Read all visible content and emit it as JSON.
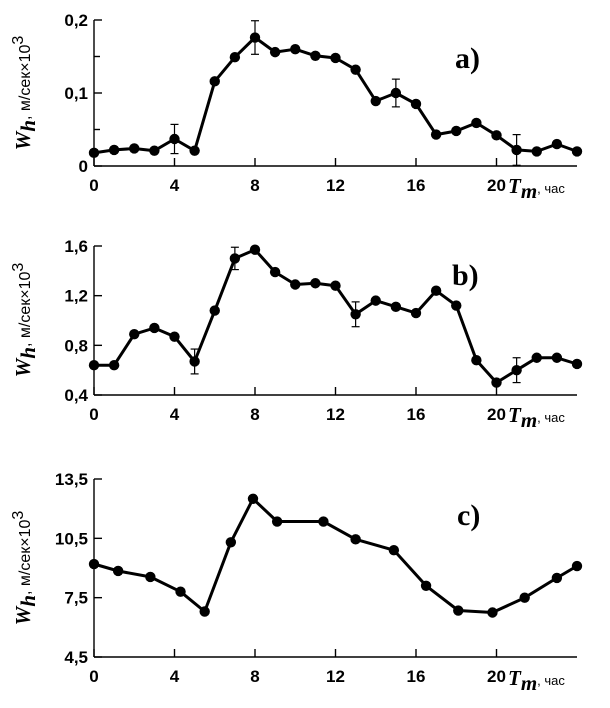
{
  "chart_data": [
    {
      "type": "line",
      "panel_label": "a)",
      "ylabel_symbol": "W",
      "ylabel_subscript": "h",
      "ylabel_unit": ", м/сек×10",
      "ylabel_exp": "3",
      "xlabel_symbol": "T",
      "xlabel_subscript": "m",
      "xlabel_unit": ", час",
      "xlim": [
        0,
        24
      ],
      "ylim": [
        0,
        0.2
      ],
      "xticks": [
        0,
        4,
        8,
        12,
        16,
        20
      ],
      "xtick_labels": [
        "0",
        "4",
        "8",
        "12",
        "16",
        "20"
      ],
      "yticks": [
        0,
        0.1,
        0.2
      ],
      "ytick_labels": [
        "0",
        "0,1",
        "0,2"
      ],
      "minor_yticks": [
        0.05,
        0.15
      ],
      "grid": false,
      "x": [
        0,
        1,
        2,
        3,
        4,
        5,
        6,
        7,
        8,
        9,
        10,
        11,
        12,
        13,
        14,
        15,
        16,
        17,
        18,
        19,
        20,
        21,
        22,
        23,
        24
      ],
      "y": [
        0.018,
        0.022,
        0.024,
        0.021,
        0.037,
        0.021,
        0.116,
        0.149,
        0.176,
        0.156,
        0.16,
        0.151,
        0.148,
        0.132,
        0.089,
        0.1,
        0.085,
        0.043,
        0.048,
        0.059,
        0.042,
        0.022,
        0.02,
        0.03,
        0.02
      ],
      "error": [
        null,
        null,
        null,
        null,
        0.02,
        null,
        null,
        null,
        0.023,
        null,
        null,
        null,
        null,
        null,
        null,
        0.019,
        null,
        null,
        null,
        null,
        null,
        0.021,
        null,
        null,
        null
      ]
    },
    {
      "type": "line",
      "panel_label": "b)",
      "ylabel_symbol": "W",
      "ylabel_subscript": "h",
      "ylabel_unit": ", м/сек×10",
      "ylabel_exp": "3",
      "xlabel_symbol": "T",
      "xlabel_subscript": "m",
      "xlabel_unit": ", час",
      "xlim": [
        0,
        24
      ],
      "ylim": [
        0.4,
        1.6
      ],
      "xticks": [
        0,
        4,
        8,
        12,
        16,
        20
      ],
      "xtick_labels": [
        "0",
        "4",
        "8",
        "12",
        "16",
        "20"
      ],
      "yticks": [
        0.4,
        0.8,
        1.2,
        1.6
      ],
      "ytick_labels": [
        "0,4",
        "0,8",
        "1,2",
        "1,6"
      ],
      "minor_yticks": [],
      "grid": false,
      "x": [
        0,
        1,
        2,
        3,
        4,
        5,
        6,
        7,
        8,
        9,
        10,
        11,
        12,
        13,
        14,
        15,
        16,
        17,
        18,
        19,
        20,
        21,
        22,
        23,
        24
      ],
      "y": [
        0.64,
        0.64,
        0.89,
        0.94,
        0.87,
        0.67,
        1.08,
        1.5,
        1.57,
        1.39,
        1.29,
        1.3,
        1.28,
        1.05,
        1.16,
        1.11,
        1.06,
        1.24,
        1.12,
        0.68,
        0.5,
        0.6,
        0.7,
        0.7,
        0.65
      ],
      "error": [
        null,
        null,
        null,
        null,
        null,
        0.1,
        null,
        0.09,
        null,
        null,
        null,
        null,
        null,
        0.1,
        null,
        null,
        null,
        null,
        null,
        null,
        null,
        0.1,
        null,
        null,
        null
      ]
    },
    {
      "type": "line",
      "panel_label": "c)",
      "ylabel_symbol": "W",
      "ylabel_subscript": "h",
      "ylabel_unit": ", м/сек×10",
      "ylabel_exp": "3",
      "xlabel_symbol": "T",
      "xlabel_subscript": "m",
      "xlabel_unit": ", час",
      "xlim": [
        0,
        24
      ],
      "ylim": [
        4.5,
        13.5
      ],
      "xticks": [
        0,
        4,
        8,
        12,
        16,
        20
      ],
      "xtick_labels": [
        "0",
        "4",
        "8",
        "12",
        "16",
        "20"
      ],
      "yticks": [
        4.5,
        7.5,
        10.5,
        13.5
      ],
      "ytick_labels": [
        "4,5",
        "7,5",
        "10,5",
        "13,5"
      ],
      "minor_yticks": [],
      "grid": false,
      "x": [
        0,
        1.2,
        2.8,
        4.3,
        5.5,
        6.8,
        7.9,
        9.1,
        11.4,
        13,
        14.9,
        16.5,
        18.1,
        19.8,
        21.4,
        23,
        24
      ],
      "y": [
        9.2,
        8.85,
        8.55,
        7.8,
        6.8,
        10.3,
        12.5,
        11.35,
        11.35,
        10.45,
        9.9,
        8.1,
        6.85,
        6.75,
        7.5,
        8.5,
        9.1
      ],
      "error": []
    }
  ]
}
